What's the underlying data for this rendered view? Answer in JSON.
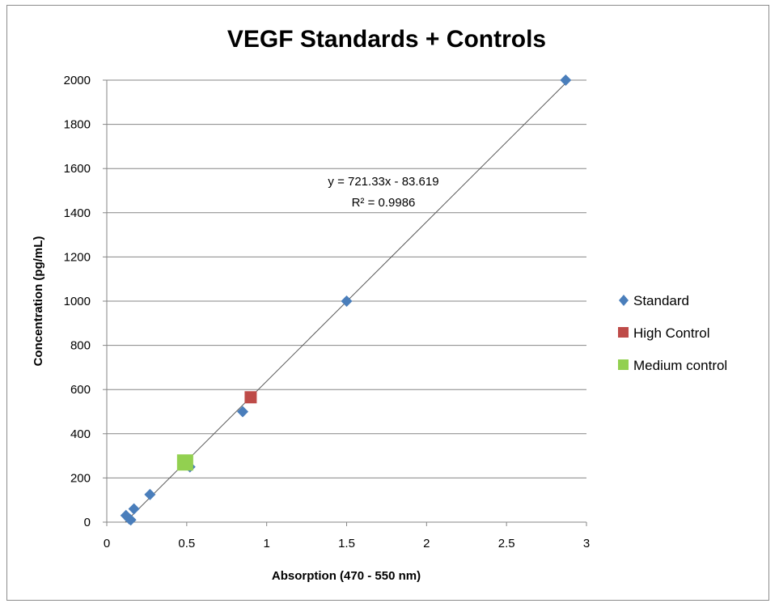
{
  "chart_data": {
    "type": "scatter",
    "title": "VEGF Standards + Controls",
    "xlabel": "Absorption (470 - 550 nm)",
    "ylabel": "Concentration (pg/mL)",
    "xlim": [
      0,
      3
    ],
    "ylim": [
      0,
      2000
    ],
    "x_ticks": [
      "0",
      "0.5",
      "1",
      "1.5",
      "2",
      "2.5",
      "3"
    ],
    "y_ticks": [
      "0",
      "200",
      "400",
      "600",
      "800",
      "1000",
      "1200",
      "1400",
      "1600",
      "1800",
      "2000"
    ],
    "grid": "horizontal",
    "legend_position": "right",
    "series": [
      {
        "name": "Standard",
        "marker": "diamond",
        "color": "#4a7ebb",
        "points": [
          [
            0.12,
            30
          ],
          [
            0.14,
            15
          ],
          [
            0.15,
            10
          ],
          [
            0.17,
            60
          ],
          [
            0.27,
            125
          ],
          [
            0.52,
            250
          ],
          [
            0.85,
            500
          ],
          [
            1.5,
            1000
          ],
          [
            2.87,
            2000
          ]
        ]
      },
      {
        "name": "High Control",
        "marker": "square",
        "color": "#be4b48",
        "points": [
          [
            0.9,
            565
          ]
        ]
      },
      {
        "name": "Medium control",
        "marker": "square",
        "color": "#92d050",
        "points": [
          [
            0.49,
            270
          ]
        ]
      }
    ],
    "trendline": {
      "slope": 721.33,
      "intercept": -83.619,
      "equation": "y = 721.33x - 83.619",
      "r_squared": "R² = 0.9986",
      "color": "#595959"
    }
  }
}
